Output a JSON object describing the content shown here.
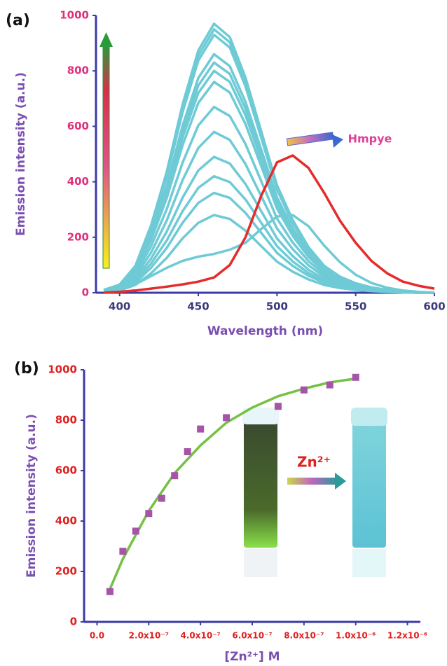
{
  "chart_data": [
    {
      "type": "line",
      "panel_label": "(a)",
      "x_label": "Wavelength (nm)",
      "y_label": "Emission intensity (a.u.)",
      "annotation": "Hmpye",
      "xlim": [
        385,
        600
      ],
      "xticks": [
        400,
        450,
        500,
        550,
        600
      ],
      "ylim": [
        0,
        1000
      ],
      "yticks": [
        0,
        200,
        400,
        600,
        800,
        1000
      ],
      "x": [
        390,
        400,
        410,
        420,
        430,
        440,
        450,
        460,
        470,
        480,
        490,
        500,
        510,
        520,
        530,
        540,
        550,
        560,
        570,
        580,
        590,
        600
      ],
      "series": [
        {
          "color": "#6ecbd6",
          "mode": "line",
          "values": [
            10,
            29,
            97,
            243,
            437,
            679,
            873,
            970,
            922,
            776,
            582,
            388,
            262,
            165,
            97,
            58,
            34,
            19,
            10,
            5,
            0,
            0
          ]
        },
        {
          "color": "#6ecbd6",
          "mode": "line",
          "values": [
            10,
            29,
            95,
            238,
            428,
            665,
            855,
            950,
            903,
            760,
            570,
            380,
            257,
            162,
            95,
            57,
            33,
            19,
            10,
            5,
            0,
            0
          ]
        },
        {
          "color": "#6ecbd6",
          "mode": "line",
          "values": [
            9,
            28,
            93,
            233,
            419,
            651,
            837,
            930,
            884,
            744,
            558,
            372,
            251,
            158,
            93,
            56,
            33,
            19,
            9,
            5,
            0,
            0
          ]
        },
        {
          "color": "#6ecbd6",
          "mode": "line",
          "values": [
            9,
            26,
            86,
            215,
            387,
            602,
            774,
            860,
            817,
            688,
            516,
            344,
            232,
            146,
            86,
            52,
            30,
            17,
            9,
            4,
            0,
            0
          ]
        },
        {
          "color": "#6ecbd6",
          "mode": "line",
          "values": [
            8,
            25,
            83,
            208,
            374,
            581,
            747,
            830,
            789,
            664,
            498,
            332,
            224,
            141,
            83,
            50,
            29,
            17,
            8,
            4,
            0,
            0
          ]
        },
        {
          "color": "#6ecbd6",
          "mode": "line",
          "values": [
            8,
            24,
            80,
            200,
            360,
            560,
            720,
            800,
            760,
            640,
            480,
            320,
            216,
            136,
            80,
            48,
            28,
            16,
            8,
            4,
            0,
            0
          ]
        },
        {
          "color": "#6ecbd6",
          "mode": "line",
          "values": [
            8,
            23,
            76,
            190,
            342,
            532,
            684,
            760,
            722,
            608,
            456,
            304,
            205,
            129,
            76,
            46,
            27,
            15,
            8,
            4,
            0,
            0
          ]
        },
        {
          "color": "#6ecbd6",
          "mode": "line",
          "values": [
            7,
            20,
            67,
            168,
            302,
            469,
            603,
            670,
            637,
            536,
            402,
            268,
            181,
            114,
            67,
            40,
            23,
            13,
            7,
            3,
            0,
            0
          ]
        },
        {
          "color": "#6ecbd6",
          "mode": "line",
          "values": [
            6,
            17,
            58,
            145,
            261,
            406,
            522,
            580,
            551,
            464,
            348,
            232,
            157,
            99,
            58,
            35,
            20,
            12,
            6,
            3,
            0,
            0
          ]
        },
        {
          "color": "#6ecbd6",
          "mode": "line",
          "values": [
            5,
            15,
            49,
            123,
            221,
            343,
            441,
            490,
            466,
            392,
            294,
            196,
            132,
            83,
            49,
            29,
            17,
            10,
            5,
            2,
            0,
            0
          ]
        },
        {
          "color": "#6ecbd6",
          "mode": "line",
          "values": [
            4,
            13,
            42,
            105,
            189,
            294,
            378,
            420,
            399,
            336,
            252,
            168,
            113,
            71,
            42,
            25,
            15,
            8,
            4,
            2,
            0,
            0
          ]
        },
        {
          "color": "#6ecbd6",
          "mode": "line",
          "values": [
            4,
            11,
            36,
            90,
            162,
            252,
            324,
            360,
            342,
            288,
            216,
            144,
            97,
            61,
            36,
            22,
            13,
            7,
            4,
            2,
            0,
            0
          ]
        },
        {
          "color": "#6ecbd6",
          "mode": "line",
          "values": [
            3,
            8,
            28,
            70,
            126,
            196,
            252,
            280,
            266,
            224,
            168,
            112,
            76,
            48,
            28,
            17,
            10,
            6,
            3,
            1,
            0,
            0
          ]
        },
        {
          "color": "#6ecbd6",
          "mode": "line",
          "values": [
            2,
            10,
            30,
            60,
            90,
            115,
            130,
            140,
            155,
            180,
            230,
            275,
            280,
            240,
            170,
            110,
            65,
            35,
            18,
            8,
            3,
            0
          ]
        },
        {
          "color": "#e52b2b",
          "mode": "line",
          "values": [
            0,
            3,
            8,
            15,
            22,
            30,
            40,
            55,
            100,
            200,
            350,
            470,
            495,
            450,
            360,
            260,
            180,
            115,
            70,
            40,
            25,
            15
          ]
        }
      ]
    },
    {
      "type": "scatter",
      "panel_label": "(b)",
      "x_label": "[Zn²⁺] M",
      "y_label": "Emission intensity (a.u.)",
      "annotation": "Zn²⁺",
      "xlim": [
        -5e-08,
        1.25e-06
      ],
      "xticks": [
        {
          "value": 0,
          "label": "0.0"
        },
        {
          "value": 2e-07,
          "label": "2.0x10⁻⁷"
        },
        {
          "value": 4e-07,
          "label": "4.0x10⁻⁷"
        },
        {
          "value": 6e-07,
          "label": "6.0x10⁻⁷"
        },
        {
          "value": 8e-07,
          "label": "8.0x10⁻⁷"
        },
        {
          "value": 1e-06,
          "label": "1.0x10⁻⁶"
        },
        {
          "value": 1.2e-06,
          "label": "1.2x10⁻⁶"
        }
      ],
      "ylim": [
        0,
        1000
      ],
      "yticks": [
        0,
        200,
        400,
        600,
        800,
        1000
      ],
      "series": [
        {
          "color": "#74c143",
          "mode": "line",
          "x": [
            5e-08,
            1e-07,
            2e-07,
            3e-07,
            4e-07,
            5e-07,
            6e-07,
            7e-07,
            8e-07,
            9e-07,
            1e-06
          ],
          "values": [
            130,
            250,
            440,
            590,
            700,
            790,
            850,
            895,
            925,
            950,
            965
          ]
        },
        {
          "color": "#a654a8",
          "mode": "markers",
          "x": [
            5e-08,
            1e-07,
            1.5e-07,
            2e-07,
            2.5e-07,
            3e-07,
            3.5e-07,
            4e-07,
            5e-07,
            7e-07,
            8e-07,
            9e-07,
            1e-06
          ],
          "values": [
            120,
            280,
            360,
            430,
            490,
            580,
            675,
            765,
            810,
            855,
            920,
            940,
            970
          ]
        }
      ]
    }
  ]
}
